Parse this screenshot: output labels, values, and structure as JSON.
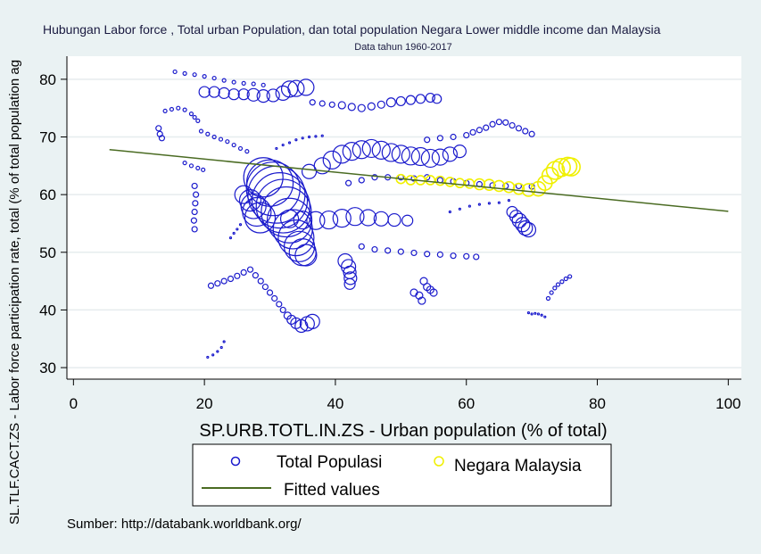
{
  "chart_data": {
    "type": "scatter",
    "title": "Hubungan Labor force , Total urban Population, dan total population Negara Lower middle income dan Malaysia",
    "subtitle": "Data tahun 1960-2017",
    "xlabel": "SP.URB.TOTL.IN.ZS - Urban population (% of total)",
    "ylabel": "SL.TLF.CACT.ZS - Labor force participation rate, total (% of total population ag",
    "xlim": [
      -1,
      102
    ],
    "ylim": [
      28,
      84
    ],
    "x_ticks": [
      0,
      20,
      40,
      60,
      80,
      100
    ],
    "y_ticks": [
      30,
      40,
      50,
      60,
      70,
      80
    ],
    "grid": true,
    "legend_position": "bottom",
    "note": "Sumber: http://databank.worldbank.org/",
    "colors": {
      "total": "#1a1acc",
      "malaysia": "#f0f000",
      "fit": "#4a6b22"
    },
    "series": [
      {
        "name": "Total Populasi",
        "marker": "hollow-circle",
        "points": [
          [
            15.5,
            81.3,
            2
          ],
          [
            17,
            81,
            2
          ],
          [
            18.5,
            80.8,
            2
          ],
          [
            20,
            80.5,
            2
          ],
          [
            21.5,
            80.2,
            2
          ],
          [
            23,
            79.8,
            2
          ],
          [
            24.5,
            79.5,
            2
          ],
          [
            26,
            79.3,
            2
          ],
          [
            27.5,
            79.2,
            2
          ],
          [
            29,
            79,
            2
          ],
          [
            20,
            77.8,
            6
          ],
          [
            21.5,
            77.8,
            6
          ],
          [
            23,
            77.6,
            6
          ],
          [
            24.5,
            77.4,
            6
          ],
          [
            26,
            77.4,
            6
          ],
          [
            27.5,
            77.3,
            7
          ],
          [
            29,
            77.1,
            7
          ],
          [
            30.5,
            77.2,
            7
          ],
          [
            32,
            77.6,
            8
          ],
          [
            33,
            78.3,
            9
          ],
          [
            34,
            78.4,
            9
          ],
          [
            35.5,
            78.6,
            9
          ],
          [
            36.5,
            76,
            3
          ],
          [
            38,
            75.8,
            3
          ],
          [
            39.5,
            75.6,
            3
          ],
          [
            41,
            75.5,
            4
          ],
          [
            42.5,
            75.2,
            4
          ],
          [
            44,
            75,
            4
          ],
          [
            45.5,
            75.3,
            4
          ],
          [
            47,
            75.6,
            4
          ],
          [
            48.5,
            76,
            5
          ],
          [
            50,
            76.2,
            5
          ],
          [
            51.5,
            76.4,
            5
          ],
          [
            53,
            76.6,
            5
          ],
          [
            54.5,
            76.8,
            5
          ],
          [
            55.5,
            76.6,
            5
          ],
          [
            14,
            74.5,
            2
          ],
          [
            15,
            74.8,
            2
          ],
          [
            16,
            75,
            2
          ],
          [
            17,
            74.7,
            2
          ],
          [
            18,
            74,
            2
          ],
          [
            18.5,
            73.4,
            2
          ],
          [
            19,
            72.8,
            2
          ],
          [
            13,
            71.5,
            3
          ],
          [
            13.2,
            70.5,
            3
          ],
          [
            13.5,
            69.8,
            3
          ],
          [
            19.5,
            71,
            2
          ],
          [
            20.5,
            70.5,
            2
          ],
          [
            21.5,
            70,
            2
          ],
          [
            22.5,
            69.6,
            2
          ],
          [
            23.5,
            69.2,
            2
          ],
          [
            24.5,
            68.6,
            2
          ],
          [
            25.5,
            68,
            2
          ],
          [
            26.5,
            67.5,
            2
          ],
          [
            17,
            65.5,
            2
          ],
          [
            18,
            65,
            2
          ],
          [
            19,
            64.6,
            2
          ],
          [
            19.8,
            64.3,
            2
          ],
          [
            18.5,
            61.5,
            3
          ],
          [
            18.7,
            60,
            3
          ],
          [
            18.6,
            58.5,
            3
          ],
          [
            18.5,
            57,
            3
          ],
          [
            18.4,
            55.5,
            3
          ],
          [
            18.5,
            54,
            3
          ],
          [
            42,
            62,
            3
          ],
          [
            44,
            62.5,
            3
          ],
          [
            46,
            63,
            3
          ],
          [
            48,
            63,
            3
          ],
          [
            50,
            63,
            3
          ],
          [
            52,
            62.8,
            3
          ],
          [
            54,
            63,
            3
          ],
          [
            56,
            62.5,
            3
          ],
          [
            58,
            62.3,
            3
          ],
          [
            60,
            62,
            3
          ],
          [
            62,
            61.8,
            3
          ],
          [
            64,
            61.6,
            3
          ],
          [
            66,
            61.5,
            3
          ],
          [
            68,
            61.5,
            3
          ],
          [
            70,
            61.4,
            3
          ],
          [
            36,
            64,
            8
          ],
          [
            38,
            65,
            9
          ],
          [
            39.5,
            66,
            10
          ],
          [
            41,
            67,
            10
          ],
          [
            42.5,
            67.5,
            10
          ],
          [
            44,
            67.8,
            10
          ],
          [
            45.5,
            68,
            10
          ],
          [
            47,
            67.7,
            10
          ],
          [
            48.5,
            67.3,
            10
          ],
          [
            50,
            67,
            10
          ],
          [
            51.5,
            66.7,
            10
          ],
          [
            53,
            66.6,
            10
          ],
          [
            54.5,
            66.3,
            10
          ],
          [
            56,
            66.5,
            9
          ],
          [
            57.5,
            67,
            8
          ],
          [
            59,
            67.5,
            7
          ],
          [
            54,
            69.5,
            3
          ],
          [
            56,
            69.8,
            3
          ],
          [
            58,
            70,
            3
          ],
          [
            60,
            70.3,
            3
          ],
          [
            61,
            70.8,
            3
          ],
          [
            62,
            71.2,
            3
          ],
          [
            63,
            71.6,
            3
          ],
          [
            64,
            72.2,
            3
          ],
          [
            65,
            72.6,
            3
          ],
          [
            66,
            72.5,
            3
          ],
          [
            67,
            72,
            3
          ],
          [
            68,
            71.5,
            3
          ],
          [
            69,
            71,
            3
          ],
          [
            70,
            70.5,
            3
          ],
          [
            29,
            63,
            22
          ],
          [
            30,
            62,
            26
          ],
          [
            30.5,
            61,
            30
          ],
          [
            31,
            60,
            32
          ],
          [
            31.5,
            59,
            31
          ],
          [
            32,
            58,
            30
          ],
          [
            32.5,
            57,
            28
          ],
          [
            33,
            55.5,
            25
          ],
          [
            33.5,
            54,
            22
          ],
          [
            34,
            52.5,
            20
          ],
          [
            34.5,
            51,
            17
          ],
          [
            35,
            50,
            15
          ],
          [
            35.5,
            49.5,
            12
          ],
          [
            26,
            60,
            10
          ],
          [
            27,
            59,
            12
          ],
          [
            27.5,
            58,
            14
          ],
          [
            28,
            57,
            16
          ],
          [
            28.5,
            56,
            17
          ],
          [
            33,
            55.8,
            10
          ],
          [
            35,
            55.6,
            10
          ],
          [
            37,
            55.5,
            10
          ],
          [
            39,
            55.6,
            10
          ],
          [
            41,
            55.9,
            10
          ],
          [
            43,
            56.2,
            10
          ],
          [
            45,
            56,
            9
          ],
          [
            47,
            55.8,
            8
          ],
          [
            49,
            55.6,
            7
          ],
          [
            51,
            55.5,
            6
          ],
          [
            44,
            51,
            3
          ],
          [
            46,
            50.5,
            3
          ],
          [
            48,
            50.3,
            3
          ],
          [
            50,
            50.1,
            3
          ],
          [
            52,
            49.9,
            3
          ],
          [
            54,
            49.7,
            3
          ],
          [
            56,
            49.6,
            3
          ],
          [
            58,
            49.4,
            3
          ],
          [
            60,
            49.3,
            3
          ],
          [
            61.5,
            49.2,
            3
          ],
          [
            41.5,
            48.5,
            8
          ],
          [
            42,
            47.5,
            8
          ],
          [
            42.2,
            46.5,
            7
          ],
          [
            42.3,
            45.5,
            7
          ],
          [
            42.2,
            44.5,
            6
          ],
          [
            53.5,
            45,
            4
          ],
          [
            54,
            44,
            4
          ],
          [
            54.5,
            43.5,
            4
          ],
          [
            55,
            43,
            4
          ],
          [
            52,
            43,
            4
          ],
          [
            52.8,
            42.5,
            4
          ],
          [
            53.2,
            41.6,
            4
          ],
          [
            21,
            44.2,
            3
          ],
          [
            22,
            44.6,
            3
          ],
          [
            23,
            45,
            3
          ],
          [
            24,
            45.4,
            3
          ],
          [
            25,
            45.9,
            3
          ],
          [
            26,
            46.5,
            3
          ],
          [
            27,
            47,
            3
          ],
          [
            27.8,
            46,
            3
          ],
          [
            28.6,
            45,
            3
          ],
          [
            29.3,
            44,
            3
          ],
          [
            30,
            43,
            3
          ],
          [
            30.7,
            42,
            3
          ],
          [
            31.4,
            41,
            3
          ],
          [
            32,
            40,
            3
          ],
          [
            32.7,
            39,
            4
          ],
          [
            33.3,
            38.3,
            5
          ],
          [
            34,
            37.7,
            6
          ],
          [
            34.8,
            37.2,
            7
          ],
          [
            35.7,
            37.6,
            8
          ],
          [
            36.5,
            38,
            8
          ],
          [
            20.5,
            31.8,
            1
          ],
          [
            21.3,
            32.2,
            1
          ],
          [
            22,
            32.8,
            1
          ],
          [
            22.6,
            33.5,
            1
          ],
          [
            23,
            34.5,
            1
          ],
          [
            72.5,
            42,
            2
          ],
          [
            73,
            43,
            2
          ],
          [
            73.5,
            43.8,
            2
          ],
          [
            74,
            44.4,
            2
          ],
          [
            74.6,
            44.9,
            2
          ],
          [
            75.2,
            45.4,
            2
          ],
          [
            75.8,
            45.8,
            2
          ],
          [
            69.5,
            39.5,
            1
          ],
          [
            70,
            39.3,
            1
          ],
          [
            70.5,
            39.4,
            1
          ],
          [
            71,
            39.3,
            1
          ],
          [
            71.5,
            39.1,
            1
          ],
          [
            72,
            38.8,
            1
          ],
          [
            67,
            57,
            6
          ],
          [
            67.6,
            56.2,
            7
          ],
          [
            68.1,
            55.5,
            8
          ],
          [
            68.6,
            54.8,
            8
          ],
          [
            69,
            54.2,
            8
          ],
          [
            69.5,
            53.9,
            8
          ],
          [
            57.5,
            57,
            1
          ],
          [
            59,
            57.5,
            1
          ],
          [
            60.5,
            58,
            1
          ],
          [
            62,
            58.3,
            1
          ],
          [
            63.5,
            58.5,
            1
          ],
          [
            65,
            58.6,
            1
          ],
          [
            66.5,
            59,
            1
          ],
          [
            31,
            68,
            1
          ],
          [
            32,
            68.6,
            1
          ],
          [
            33,
            69,
            1
          ],
          [
            34,
            69.5,
            1
          ],
          [
            35,
            69.8,
            1
          ],
          [
            36,
            70,
            1
          ],
          [
            37,
            70.1,
            1
          ],
          [
            38,
            70.2,
            1
          ],
          [
            24,
            52.5,
            1
          ],
          [
            24.5,
            53.3,
            1
          ],
          [
            25,
            54,
            1
          ],
          [
            25.5,
            54.8,
            1
          ]
        ]
      },
      {
        "name": "Negara Malaysia",
        "marker": "hollow-circle",
        "points": [
          [
            50,
            62.7,
            5
          ],
          [
            51.5,
            62.5,
            5
          ],
          [
            53,
            62.5,
            5
          ],
          [
            54.5,
            62.5,
            5
          ],
          [
            56,
            62.4,
            5
          ],
          [
            57.5,
            62.2,
            5
          ],
          [
            59,
            62,
            5
          ],
          [
            60.5,
            61.9,
            5
          ],
          [
            62,
            61.8,
            6
          ],
          [
            63.5,
            61.7,
            6
          ],
          [
            65,
            61.5,
            6
          ],
          [
            66.5,
            61.3,
            6
          ],
          [
            68,
            61,
            6
          ],
          [
            69.5,
            60.8,
            7
          ],
          [
            71,
            61,
            8
          ],
          [
            72,
            62,
            8
          ],
          [
            72.8,
            63.3,
            9
          ],
          [
            73.6,
            64.2,
            10
          ],
          [
            74.5,
            64.7,
            10
          ],
          [
            75.5,
            64.9,
            10
          ],
          [
            76,
            64.8,
            10
          ]
        ]
      }
    ],
    "fitted_line": {
      "name": "Fitted values",
      "x": [
        5.5,
        100
      ],
      "y": [
        67.8,
        57.1
      ]
    }
  }
}
